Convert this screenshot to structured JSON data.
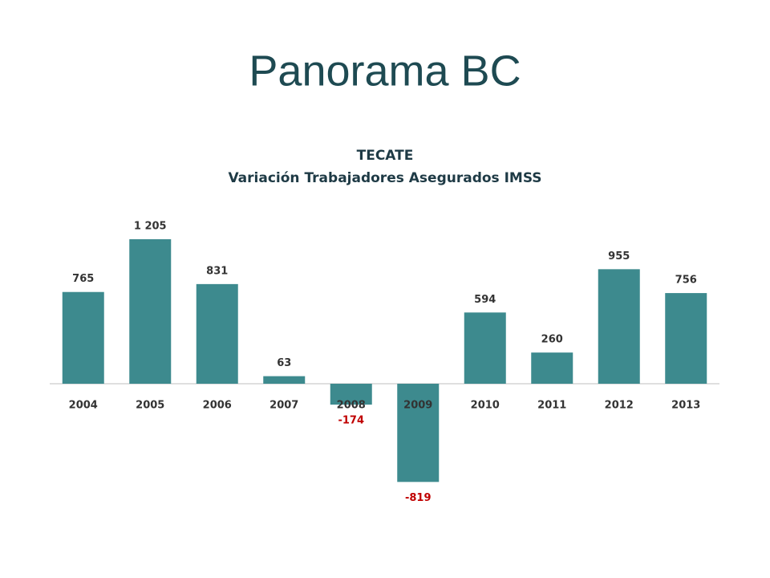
{
  "slide": {
    "title": "Panorama BC"
  },
  "chart_data": {
    "type": "bar",
    "title": "TECATE",
    "subtitle": "Variación Trabajadores Asegurados IMSS",
    "categories": [
      "2004",
      "2005",
      "2006",
      "2007",
      "2008",
      "2009",
      "2010",
      "2011",
      "2012",
      "2013"
    ],
    "values": [
      765,
      1205,
      831,
      63,
      -174,
      -819,
      594,
      260,
      955,
      756
    ],
    "value_labels": [
      "765",
      "1 205",
      "831",
      "63",
      "-174",
      "-819",
      "594",
      "260",
      "955",
      "756"
    ],
    "color": "#3d8a8e",
    "negative_label_color": "#c00000",
    "label_color": "#333333"
  }
}
